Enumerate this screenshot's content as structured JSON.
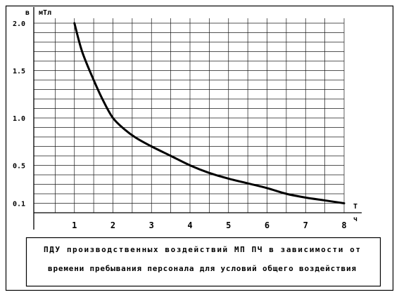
{
  "chart_data": {
    "type": "line",
    "ylabel": "в",
    "yunit": "мТл",
    "xlabel": "T",
    "xunit": "ч",
    "xlim": [
      0,
      8
    ],
    "ylim": [
      0,
      2.0
    ],
    "x_ticks": [
      1,
      2,
      3,
      4,
      5,
      6,
      7,
      8
    ],
    "x_tick_labels": [
      "1",
      "2",
      "3",
      "4",
      "5",
      "6",
      "7",
      "8"
    ],
    "y_ticks": [
      2.0,
      1.5,
      1.0,
      0.5,
      0.1
    ],
    "y_tick_labels": [
      "2.0",
      "1.5",
      "1.0",
      "0.5",
      "0.1"
    ],
    "grid": true,
    "grid_step_x": 0.5,
    "grid_step_y": 0.1,
    "series": [
      {
        "color": "#000000",
        "x": [
          1,
          1.2,
          1.5,
          1.75,
          2,
          2.3,
          2.6,
          3,
          3.5,
          4,
          4.5,
          5,
          5.5,
          6,
          6.5,
          7,
          7.5,
          8
        ],
        "y": [
          2.0,
          1.7,
          1.4,
          1.18,
          1.0,
          0.88,
          0.79,
          0.7,
          0.6,
          0.5,
          0.42,
          0.36,
          0.31,
          0.26,
          0.2,
          0.16,
          0.13,
          0.1
        ]
      }
    ],
    "caption": [
      "ПДУ производственных воздействий МП ПЧ в зависимости от",
      "времени пребывания персонала для условий общего воздействия"
    ]
  }
}
